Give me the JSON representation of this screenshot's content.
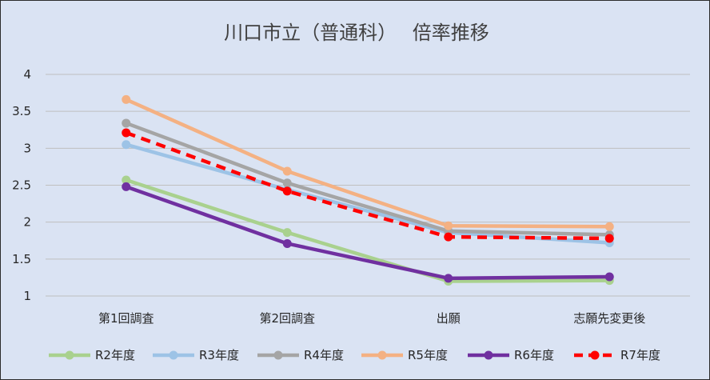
{
  "chart_data": {
    "type": "line",
    "title": "川口市立（普通科）　 倍率推移",
    "categories": [
      "第1回調査",
      "第2回調査",
      "出願",
      "志願先変更後"
    ],
    "ylim": [
      1,
      4
    ],
    "yticks": [
      "1",
      "1.5",
      "2",
      "2.5",
      "3",
      "3.5",
      "4"
    ],
    "ytick_values": [
      1,
      1.5,
      2,
      2.5,
      3,
      3.5,
      4
    ],
    "grid": true,
    "legend_position": "bottom",
    "series": [
      {
        "name": "R2年度",
        "color": "#a9d18e",
        "style": "solid",
        "values": [
          2.57,
          1.86,
          1.2,
          1.21
        ]
      },
      {
        "name": "R3年度",
        "color": "#9dc3e6",
        "style": "solid",
        "values": [
          3.05,
          2.44,
          1.86,
          1.72
        ]
      },
      {
        "name": "R4年度",
        "color": "#a5a5a5",
        "style": "solid",
        "values": [
          3.34,
          2.53,
          1.88,
          1.83
        ]
      },
      {
        "name": "R5年度",
        "color": "#f4b183",
        "style": "solid",
        "values": [
          3.66,
          2.69,
          1.95,
          1.94
        ]
      },
      {
        "name": "R6年度",
        "color": "#7030a0",
        "style": "solid",
        "values": [
          2.48,
          1.71,
          1.24,
          1.26
        ]
      },
      {
        "name": "R7年度",
        "color": "#ff0000",
        "style": "dashed",
        "values": [
          3.21,
          2.42,
          1.8,
          1.78
        ]
      }
    ]
  }
}
